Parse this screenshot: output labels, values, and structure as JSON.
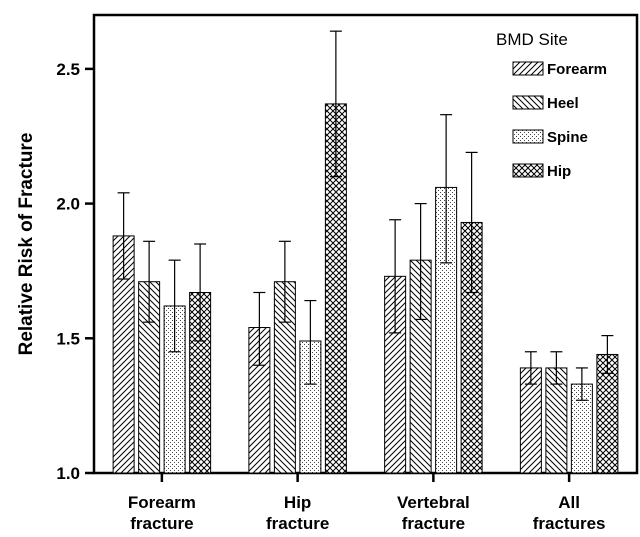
{
  "chart_data": {
    "type": "bar",
    "ylabel": "Relative Risk of Fracture",
    "ylim": [
      1.0,
      2.7
    ],
    "yticks": [
      "1.0",
      "1.5",
      "2.0",
      "2.5"
    ],
    "categories": [
      [
        "Forearm",
        "fracture"
      ],
      [
        "Hip",
        "fracture"
      ],
      [
        "Vertebral",
        "fracture"
      ],
      [
        "All",
        "fractures"
      ]
    ],
    "legend_title": "BMD Site",
    "legend_position": "top-right",
    "series": [
      {
        "name": "Forearm",
        "pattern": "diag-right",
        "values": [
          1.88,
          1.54,
          1.73,
          1.39
        ],
        "err_low": [
          1.72,
          1.4,
          1.52,
          1.33
        ],
        "err_high": [
          2.04,
          1.67,
          1.94,
          1.45
        ]
      },
      {
        "name": "Heel",
        "pattern": "diag-left",
        "values": [
          1.71,
          1.71,
          1.79,
          1.39
        ],
        "err_low": [
          1.56,
          1.56,
          1.57,
          1.33
        ],
        "err_high": [
          1.86,
          1.86,
          2.0,
          1.45
        ]
      },
      {
        "name": "Spine",
        "pattern": "dots",
        "values": [
          1.62,
          1.49,
          2.06,
          1.33
        ],
        "err_low": [
          1.45,
          1.33,
          1.78,
          1.27
        ],
        "err_high": [
          1.79,
          1.64,
          2.33,
          1.39
        ]
      },
      {
        "name": "Hip",
        "pattern": "crosshatch",
        "values": [
          1.67,
          2.37,
          1.93,
          1.44
        ],
        "err_low": [
          1.49,
          2.1,
          1.67,
          1.37
        ],
        "err_high": [
          1.85,
          2.64,
          2.19,
          1.51
        ]
      }
    ]
  }
}
